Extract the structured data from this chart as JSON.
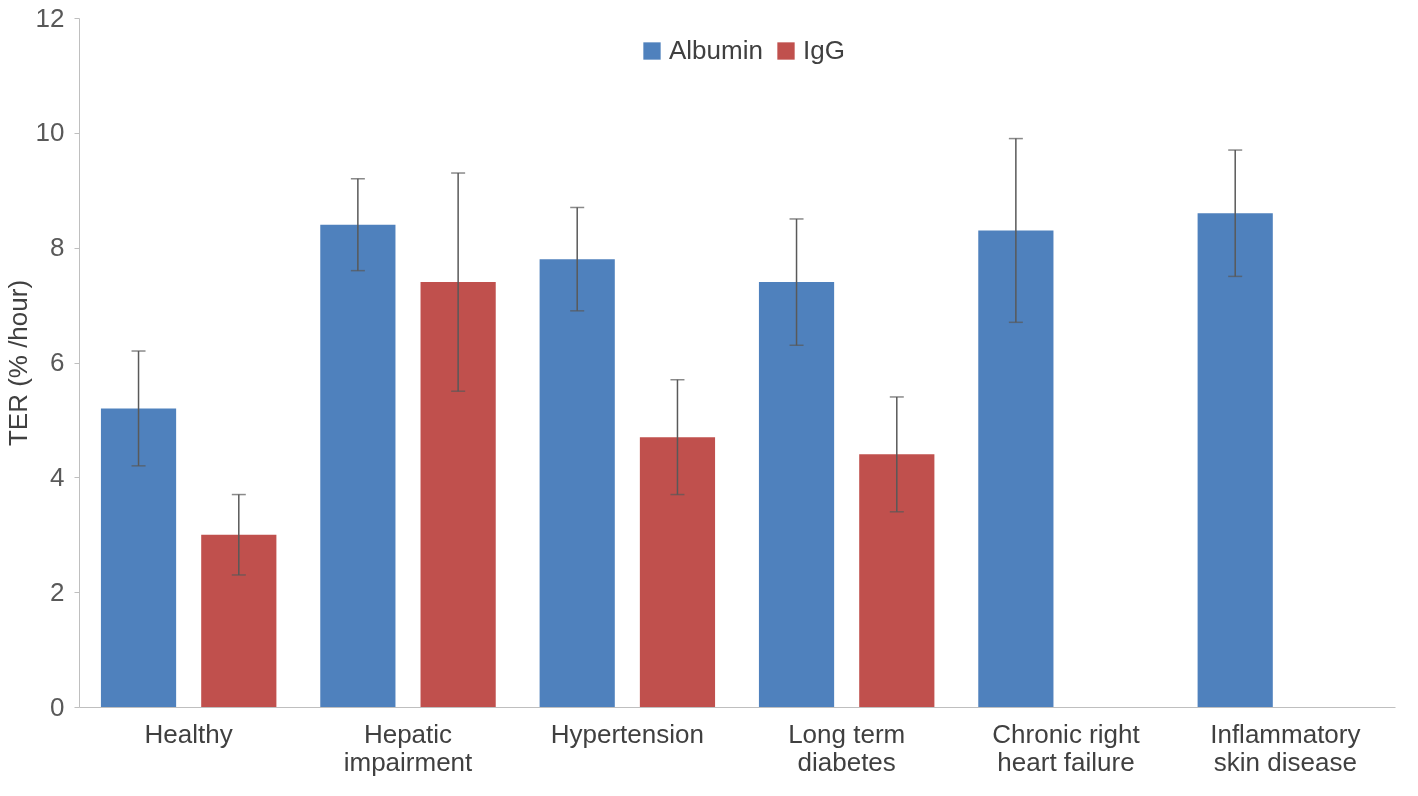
{
  "chart_data": {
    "type": "bar",
    "ylabel": "TER (% /hour)",
    "categories": [
      "Healthy",
      "Hepatic impairment",
      "Hypertension",
      "Long term diabetes",
      "Chronic right heart failure",
      "Inflammatory skin disease"
    ],
    "series": [
      {
        "name": "Albumin",
        "color": "#4f81bd",
        "values": [
          5.2,
          8.4,
          7.8,
          7.4,
          8.3,
          8.6
        ],
        "errors": [
          [
            4.2,
            6.2
          ],
          [
            7.6,
            9.2
          ],
          [
            6.9,
            8.7
          ],
          [
            6.3,
            8.5
          ],
          [
            6.7,
            9.9
          ],
          [
            7.5,
            9.7
          ]
        ]
      },
      {
        "name": "IgG",
        "color": "#c0504d",
        "values": [
          3.0,
          7.4,
          4.7,
          4.4,
          null,
          null
        ],
        "errors": [
          [
            2.3,
            3.7
          ],
          [
            5.5,
            9.3
          ],
          [
            3.7,
            5.7
          ],
          [
            3.4,
            5.4
          ],
          null,
          null
        ]
      }
    ],
    "ylim": [
      0,
      12
    ],
    "yticks": [
      0,
      2,
      4,
      6,
      8,
      10,
      12
    ],
    "grid": false,
    "legend": "top"
  }
}
